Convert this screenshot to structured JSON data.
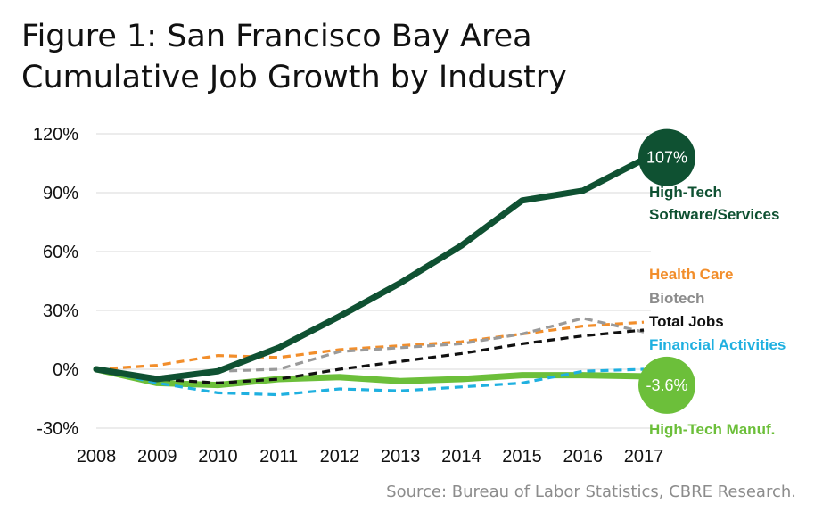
{
  "title_lines": [
    "Figure 1: San Francisco Bay Area",
    "Cumulative Job Growth by Industry"
  ],
  "source": "Source: Bureau of Labor Statistics, CBRE Research.",
  "chart_data": {
    "type": "line",
    "title": "Figure 1: San Francisco Bay Area Cumulative Job Growth by Industry",
    "xlabel": "",
    "ylabel": "",
    "x": [
      "2008",
      "2009",
      "2010",
      "2011",
      "2012",
      "2013",
      "2014",
      "2015",
      "2016",
      "2017"
    ],
    "ylim": [
      -30,
      120
    ],
    "yticks": [
      "-30%",
      "0%",
      "30%",
      "60%",
      "90%",
      "120%"
    ],
    "grid": "horizontal",
    "series": [
      {
        "name": "High-Tech Software/Services",
        "label_lines": [
          "High-Tech",
          "Software/Services"
        ],
        "color": "#0f5132",
        "style": "solid",
        "width": "thick",
        "values": [
          0,
          -5,
          -1,
          11,
          27,
          44,
          63,
          86,
          91,
          107
        ]
      },
      {
        "name": "Health Care",
        "label_lines": [
          "Health Care"
        ],
        "color": "#f28e2b",
        "style": "dashed",
        "values": [
          0,
          2,
          7,
          6,
          10,
          12,
          14,
          18,
          22,
          24
        ]
      },
      {
        "name": "Biotech",
        "label_lines": [
          "Biotech"
        ],
        "color": "#9a9a9a",
        "style": "dashed",
        "values": [
          0,
          -4,
          -1,
          0,
          9,
          11,
          13,
          18,
          26,
          19
        ]
      },
      {
        "name": "Total Jobs",
        "label_lines": [
          "Total Jobs"
        ],
        "color": "#111111",
        "style": "dashed",
        "values": [
          0,
          -5,
          -7,
          -5,
          0,
          4,
          8,
          13,
          17,
          20
        ]
      },
      {
        "name": "Financial Activities",
        "label_lines": [
          "Financial Activities"
        ],
        "color": "#1fb0e0",
        "style": "dashed",
        "values": [
          0,
          -7,
          -12,
          -13,
          -10,
          -11,
          -9,
          -7,
          -1,
          0
        ]
      },
      {
        "name": "High-Tech Manuf.",
        "label_lines": [
          "High-Tech Manuf."
        ],
        "color": "#6cbf3a",
        "style": "solid",
        "width": "thick",
        "values": [
          0,
          -7,
          -8,
          -5,
          -4,
          -6,
          -5,
          -3,
          -3,
          -3.6
        ]
      }
    ],
    "annotations": [
      {
        "series": "High-Tech Software/Services",
        "text": "107%",
        "color": "#0f5132"
      },
      {
        "series": "High-Tech Manuf.",
        "text": "-3.6%",
        "color": "#6cbf3a"
      }
    ],
    "label_colors": {
      "High-Tech Software/Services": "#0f5132",
      "Health Care": "#f28e2b",
      "Biotech": "#8c8c8c",
      "Total Jobs": "#111111",
      "Financial Activities": "#1fb0e0",
      "High-Tech Manuf.": "#6cbf3a"
    }
  }
}
